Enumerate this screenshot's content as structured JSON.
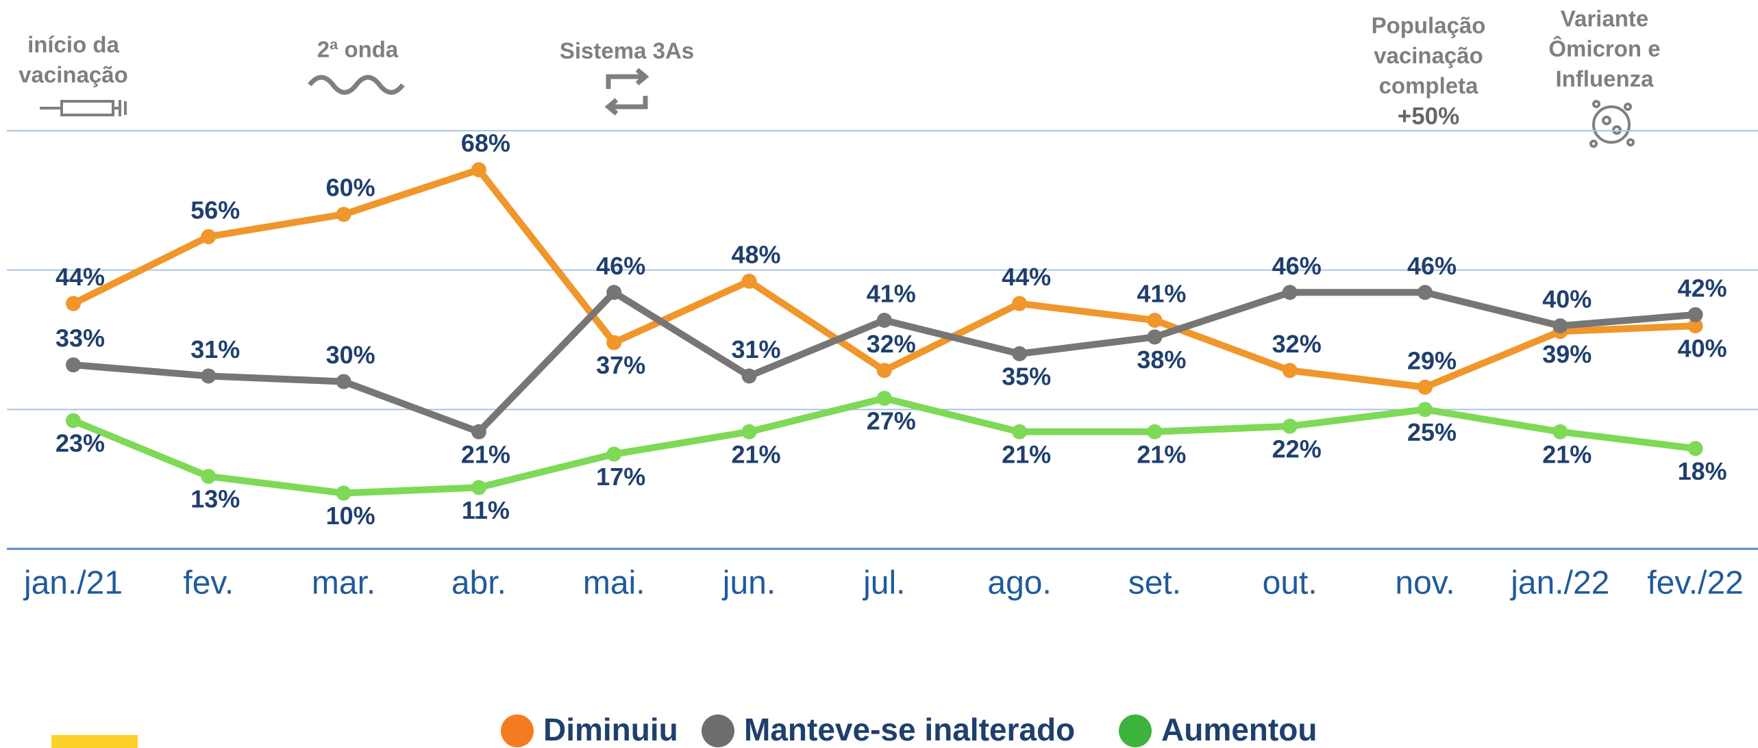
{
  "chart_data": {
    "type": "line",
    "categories": [
      "jan./21",
      "fev.",
      "mar.",
      "abr.",
      "mai.",
      "jun.",
      "jul.",
      "ago.",
      "set.",
      "out.",
      "nov.",
      "jan./22",
      "fev./22"
    ],
    "series": [
      {
        "name": "Diminuiu",
        "color": "#f0962a",
        "legend_color": "#f47b20",
        "values": [
          44,
          56,
          60,
          68,
          37,
          48,
          32,
          44,
          41,
          32,
          29,
          39,
          40
        ],
        "value_labels": [
          "44%",
          "56%",
          "60%",
          "68%",
          "37%",
          "48%",
          "32%",
          "44%",
          "41%",
          "32%",
          "29%",
          "39%",
          "40%"
        ]
      },
      {
        "name": "Manteve-se inalterado",
        "color": "#767676",
        "legend_color": "#6d6d6d",
        "values": [
          33,
          31,
          30,
          21,
          46,
          31,
          41,
          35,
          38,
          46,
          46,
          40,
          42
        ],
        "value_labels": [
          "33%",
          "31%",
          "30%",
          "21%",
          "46%",
          "31%",
          "41%",
          "35%",
          "38%",
          "46%",
          "46%",
          "40%",
          "42%"
        ]
      },
      {
        "name": "Aumentou",
        "color": "#7ed957",
        "legend_color": "#3cb43c",
        "values": [
          23,
          13,
          10,
          11,
          17,
          21,
          27,
          21,
          21,
          22,
          25,
          21,
          18
        ],
        "value_labels": [
          "23%",
          "13%",
          "10%",
          "11%",
          "17%",
          "21%",
          "27%",
          "21%",
          "21%",
          "22%",
          "25%",
          "21%",
          "18%"
        ]
      }
    ],
    "ylim": [
      0,
      75
    ],
    "yticks": [
      0,
      25,
      50,
      75
    ],
    "grid": true,
    "annotations": [
      {
        "lines": [
          "início da",
          "vacinação"
        ]
      },
      {
        "lines": [
          "2ª onda"
        ]
      },
      {
        "lines": [
          "Sistema 3As"
        ]
      },
      {
        "lines": [
          "População",
          "vacinação",
          "completa",
          "+50%"
        ]
      },
      {
        "lines": [
          "Variante",
          "Ômicron e",
          "Influenza"
        ]
      }
    ]
  }
}
